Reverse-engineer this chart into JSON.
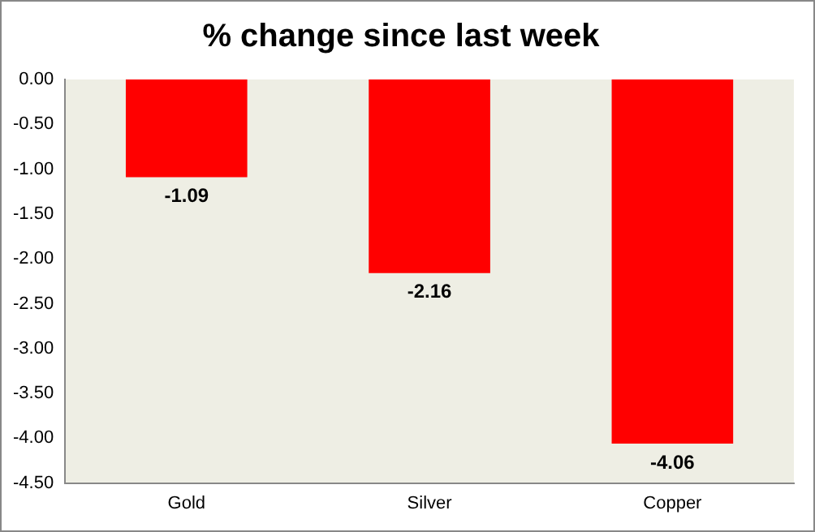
{
  "chart_data": {
    "type": "bar",
    "title": "% change since last week",
    "categories": [
      "Gold",
      "Silver",
      "Copper"
    ],
    "values": [
      -1.09,
      -2.16,
      -4.06
    ],
    "color": "#ff0000",
    "ylim": [
      -4.5,
      0
    ],
    "yticks": [
      {
        "value": 0,
        "label": "0.00"
      },
      {
        "value": -0.5,
        "label": "-0.50"
      },
      {
        "value": -1,
        "label": "-1.00"
      },
      {
        "value": -1.5,
        "label": "-1.50"
      },
      {
        "value": -2,
        "label": "-2.00"
      },
      {
        "value": -2.5,
        "label": "-2.50"
      },
      {
        "value": -3,
        "label": "-3.00"
      },
      {
        "value": -3.5,
        "label": "-3.50"
      },
      {
        "value": -4,
        "label": "-4.00"
      },
      {
        "value": -4.5,
        "label": "-4.50"
      }
    ],
    "grid": false,
    "legend": false,
    "data_labels": true
  }
}
